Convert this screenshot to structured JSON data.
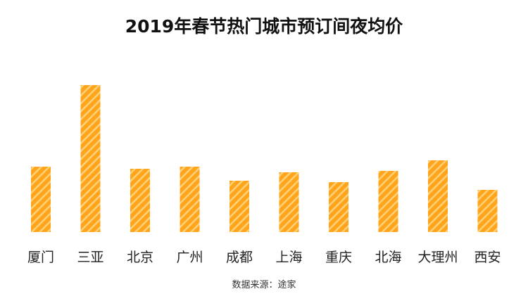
{
  "chart_data": {
    "type": "bar",
    "title": "2019年春节热门城市预订间夜均价",
    "categories": [
      "厦门",
      "三亚",
      "北京",
      "广州",
      "成都",
      "上海",
      "重庆",
      "北海",
      "大理州",
      "西安"
    ],
    "values": [
      93,
      209,
      90,
      93,
      73,
      85,
      71,
      87,
      102,
      60
    ],
    "ylim": [
      0,
      230
    ],
    "grid": false,
    "colors": {
      "bar": "#FFA41B",
      "stripe": "#FFD27A"
    }
  },
  "source": "数据来源：途家"
}
